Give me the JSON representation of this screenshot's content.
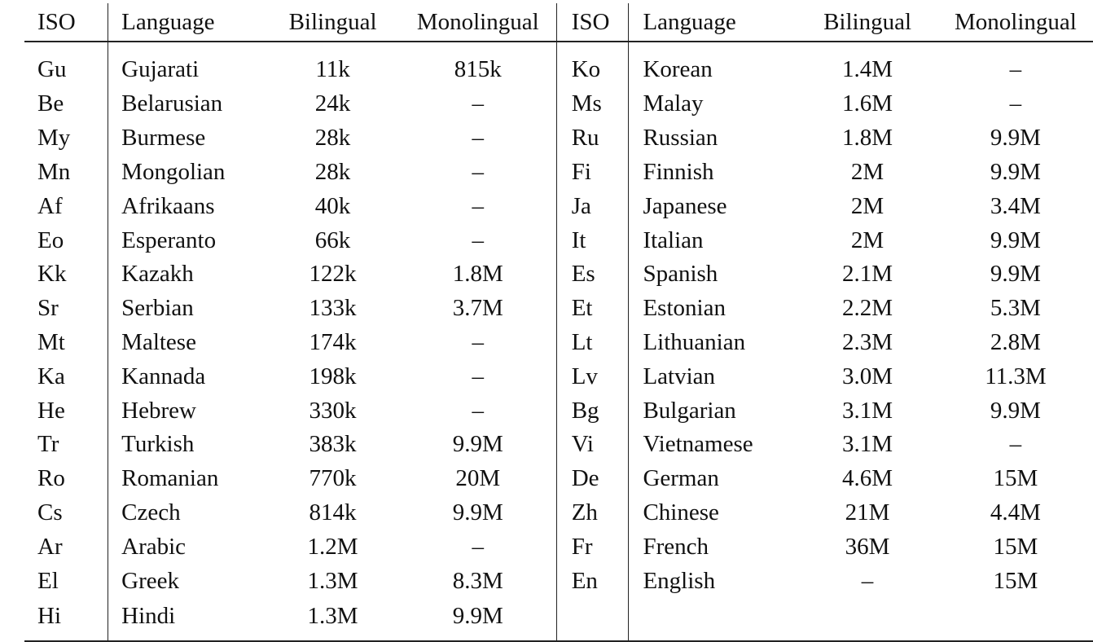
{
  "headers": {
    "iso": "ISO",
    "language": "Language",
    "bilingual": "Bilingual",
    "monolingual": "Monolingual"
  },
  "left_rows": [
    {
      "iso": "Gu",
      "language": "Gujarati",
      "bilingual": "11k",
      "monolingual": "815k"
    },
    {
      "iso": "Be",
      "language": "Belarusian",
      "bilingual": "24k",
      "monolingual": "–"
    },
    {
      "iso": "My",
      "language": "Burmese",
      "bilingual": "28k",
      "monolingual": "–"
    },
    {
      "iso": "Mn",
      "language": "Mongolian",
      "bilingual": "28k",
      "monolingual": "–"
    },
    {
      "iso": "Af",
      "language": "Afrikaans",
      "bilingual": "40k",
      "monolingual": "–"
    },
    {
      "iso": "Eo",
      "language": "Esperanto",
      "bilingual": "66k",
      "monolingual": "–"
    },
    {
      "iso": "Kk",
      "language": "Kazakh",
      "bilingual": "122k",
      "monolingual": "1.8M"
    },
    {
      "iso": "Sr",
      "language": "Serbian",
      "bilingual": "133k",
      "monolingual": "3.7M"
    },
    {
      "iso": "Mt",
      "language": "Maltese",
      "bilingual": "174k",
      "monolingual": "–"
    },
    {
      "iso": "Ka",
      "language": "Kannada",
      "bilingual": "198k",
      "monolingual": "–"
    },
    {
      "iso": "He",
      "language": "Hebrew",
      "bilingual": "330k",
      "monolingual": "–"
    },
    {
      "iso": "Tr",
      "language": "Turkish",
      "bilingual": "383k",
      "monolingual": "9.9M"
    },
    {
      "iso": "Ro",
      "language": "Romanian",
      "bilingual": "770k",
      "monolingual": "20M"
    },
    {
      "iso": "Cs",
      "language": "Czech",
      "bilingual": "814k",
      "monolingual": "9.9M"
    },
    {
      "iso": "Ar",
      "language": "Arabic",
      "bilingual": "1.2M",
      "monolingual": "–"
    },
    {
      "iso": "El",
      "language": "Greek",
      "bilingual": "1.3M",
      "monolingual": "8.3M"
    },
    {
      "iso": "Hi",
      "language": "Hindi",
      "bilingual": "1.3M",
      "monolingual": "9.9M"
    }
  ],
  "right_rows": [
    {
      "iso": "Ko",
      "language": "Korean",
      "bilingual": "1.4M",
      "monolingual": "–"
    },
    {
      "iso": "Ms",
      "language": "Malay",
      "bilingual": "1.6M",
      "monolingual": "–"
    },
    {
      "iso": "Ru",
      "language": "Russian",
      "bilingual": "1.8M",
      "monolingual": "9.9M"
    },
    {
      "iso": "Fi",
      "language": "Finnish",
      "bilingual": "2M",
      "monolingual": "9.9M"
    },
    {
      "iso": "Ja",
      "language": "Japanese",
      "bilingual": "2M",
      "monolingual": "3.4M"
    },
    {
      "iso": "It",
      "language": "Italian",
      "bilingual": "2M",
      "monolingual": "9.9M"
    },
    {
      "iso": "Es",
      "language": "Spanish",
      "bilingual": "2.1M",
      "monolingual": "9.9M"
    },
    {
      "iso": "Et",
      "language": "Estonian",
      "bilingual": "2.2M",
      "monolingual": "5.3M"
    },
    {
      "iso": "Lt",
      "language": "Lithuanian",
      "bilingual": "2.3M",
      "monolingual": "2.8M"
    },
    {
      "iso": "Lv",
      "language": "Latvian",
      "bilingual": "3.0M",
      "monolingual": "11.3M"
    },
    {
      "iso": "Bg",
      "language": "Bulgarian",
      "bilingual": "3.1M",
      "monolingual": "9.9M"
    },
    {
      "iso": "Vi",
      "language": "Vietnamese",
      "bilingual": "3.1M",
      "monolingual": "–"
    },
    {
      "iso": "De",
      "language": "German",
      "bilingual": "4.6M",
      "monolingual": "15M"
    },
    {
      "iso": "Zh",
      "language": "Chinese",
      "bilingual": "21M",
      "monolingual": "4.4M"
    },
    {
      "iso": "Fr",
      "language": "French",
      "bilingual": "36M",
      "monolingual": "15M"
    },
    {
      "iso": "En",
      "language": "English",
      "bilingual": "–",
      "monolingual": "15M"
    },
    {
      "iso": "",
      "language": "",
      "bilingual": "",
      "monolingual": ""
    }
  ]
}
